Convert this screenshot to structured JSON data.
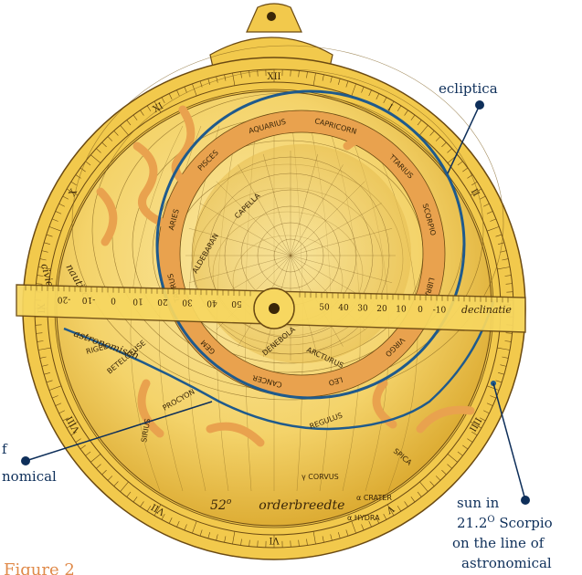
{
  "labels": {
    "ecliptica": "ecliptica",
    "sun_line1": "sun in",
    "sun_line2": "21.2",
    "sun_degree": "O",
    "sun_line2b": " Scorpio",
    "sun_line3": "on the line of",
    "sun_line4": "astronomical",
    "left_line1": "f",
    "left_line2": "nomical",
    "figure": "Figure 2"
  },
  "engravings": {
    "latitude": "52",
    "latitude_deg": "o",
    "latitude_word": "orderbreedte",
    "ruler_declination": "declinatie",
    "civil": "civiel",
    "nautisch": "nautisch",
    "astronomisch": "astronomisch"
  },
  "hour_numerals": [
    "XII",
    "I",
    "II",
    "III",
    "IIII",
    "V",
    "VI",
    "VII",
    "VIII",
    "IX",
    "X",
    "XI"
  ],
  "ruler_ticks_left": [
    "-20",
    "-10",
    "0",
    "10",
    "20",
    "30",
    "40",
    "50"
  ],
  "ruler_ticks_right": [
    "50",
    "40",
    "30",
    "20",
    "10",
    "0",
    "-10"
  ],
  "zodiac": [
    "AQUARIUS",
    "CAPRICORN",
    "SAGITTARIUS",
    "SCORPIO",
    "LIBRA",
    "VIRGO",
    "LEO",
    "CANCER",
    "GEM",
    "TAURUS",
    "ARIES",
    "PISCES"
  ],
  "stars": [
    "RIGEL",
    "BETELGEUSE",
    "PROCYON",
    "SIRIUS",
    "REGULUS",
    "SPICA",
    "DENEBOLA",
    "ALDEBARAN",
    "CAPELLA",
    "α HYDRA",
    "γ CORVUS",
    "α CRATER",
    "ARCTURUS"
  ],
  "colors": {
    "brass": "#f2c94c",
    "brass_dark": "#d9a52a",
    "rete": "#e9a24e",
    "line_navy": "#0e2f5a",
    "ecliptic_blue": "#1f5a8c",
    "ink": "#3a2608",
    "figure_orange": "#e08a4a"
  }
}
